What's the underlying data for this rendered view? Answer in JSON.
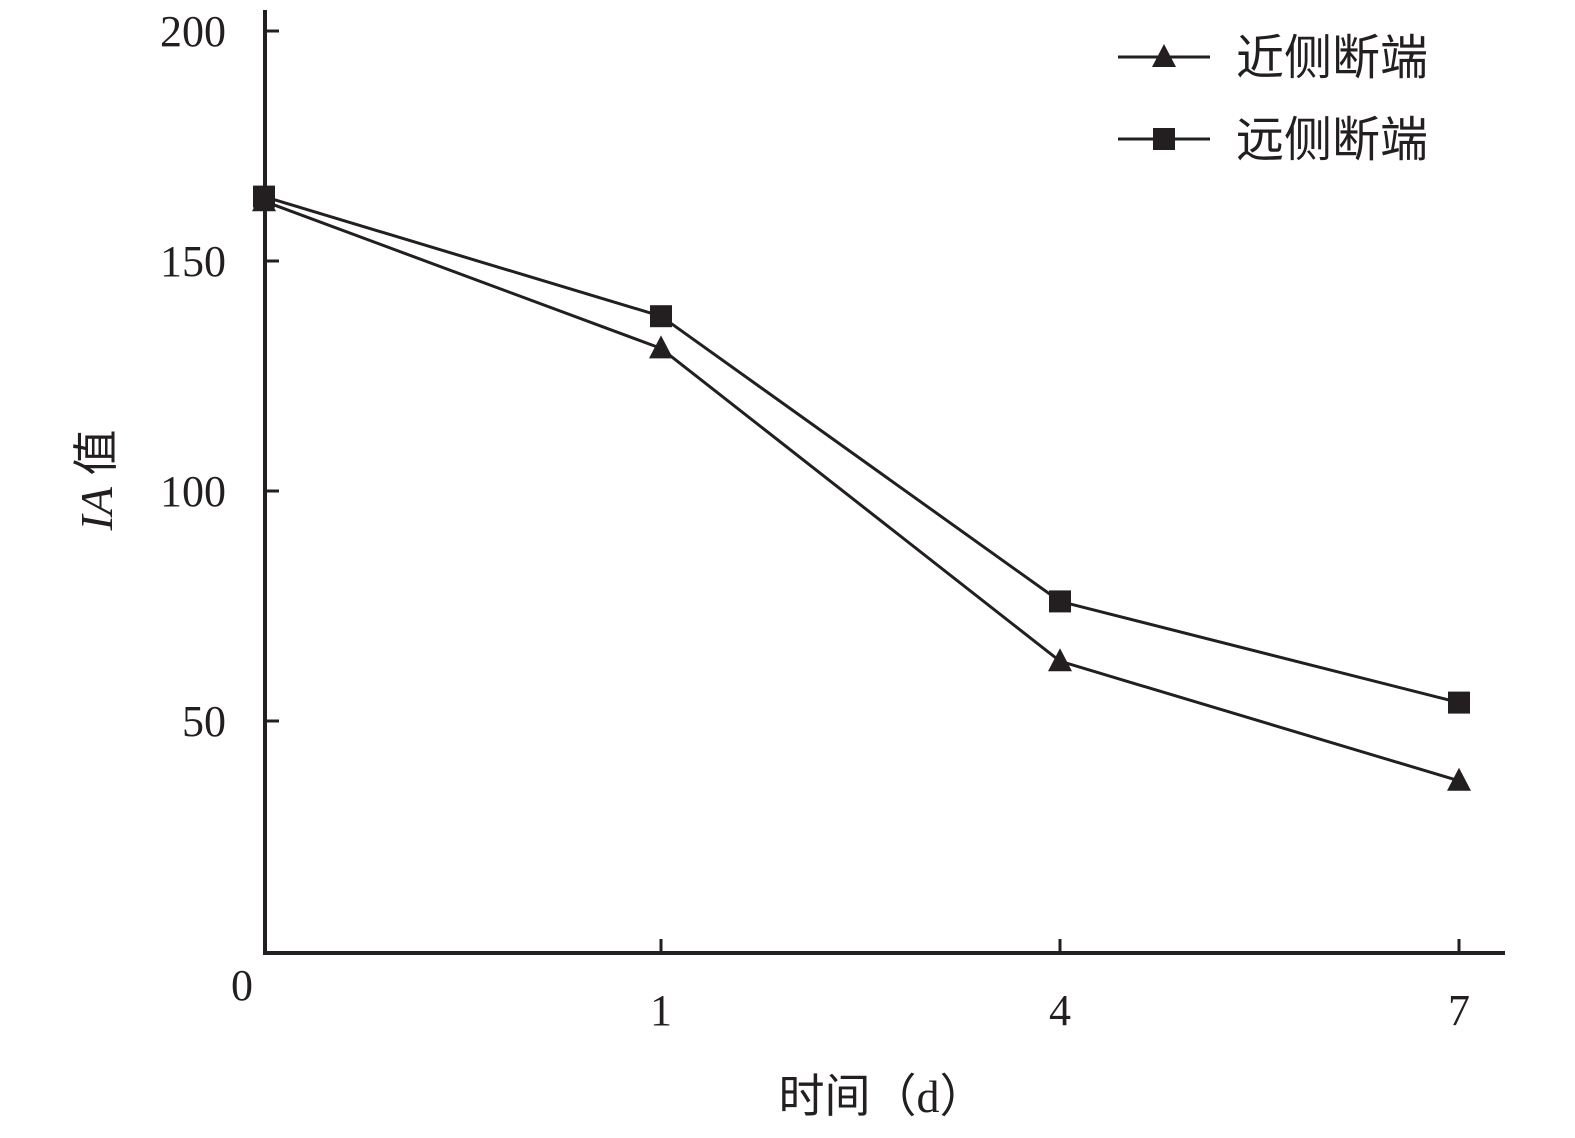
{
  "chart_data": {
    "type": "line",
    "x": [
      "0",
      "1",
      "4",
      "7"
    ],
    "xlabel": "时间（d）",
    "ylabel_italic": "IA",
    "ylabel_rest": " 值",
    "ylim": [
      0,
      200
    ],
    "yticks": [
      50,
      100,
      150,
      200
    ],
    "ytick_labels": [
      "50",
      "100",
      "150",
      "200"
    ],
    "origin_label": "0",
    "grid": false,
    "legend_position": "top-right",
    "series": [
      {
        "name": "近侧断端",
        "marker": "triangle",
        "values": [
          163,
          131,
          63,
          37
        ]
      },
      {
        "name": "远侧断端",
        "marker": "square",
        "values": [
          164,
          138,
          76,
          54
        ]
      }
    ],
    "colors": {
      "line": "#231f20",
      "background": "#ffffff"
    }
  }
}
